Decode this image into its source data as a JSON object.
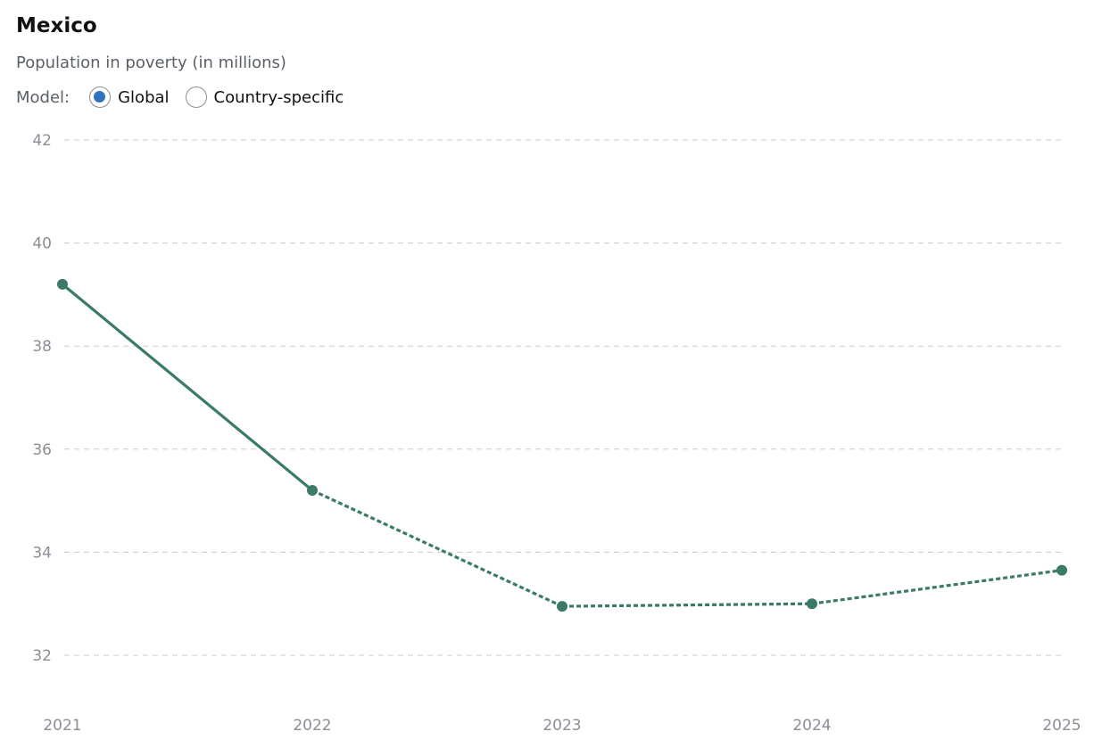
{
  "header": {
    "title": "Mexico",
    "subtitle": "Population in poverty (in millions)",
    "model_label": "Model:"
  },
  "model_options": [
    {
      "label": "Global",
      "selected": true
    },
    {
      "label": "Country-specific",
      "selected": false
    }
  ],
  "colors": {
    "line": "#3b7a68",
    "grid": "#c8ccd1",
    "tick_text": "#8a8f96",
    "radio_selected": "#2f73c0"
  },
  "chart_data": {
    "type": "line",
    "title": "Mexico",
    "subtitle": "Population in poverty (in millions)",
    "x": [
      2021,
      2022,
      2023,
      2024,
      2025
    ],
    "y_ticks": [
      32,
      34,
      36,
      38,
      40,
      42
    ],
    "ylim": [
      31,
      42
    ],
    "grid": "horizontal dashed",
    "series": [
      {
        "values": [
          39.2,
          35.2,
          32.95,
          33.0,
          33.65
        ],
        "solid_until_index": 1,
        "style_after": "dashed"
      }
    ]
  }
}
